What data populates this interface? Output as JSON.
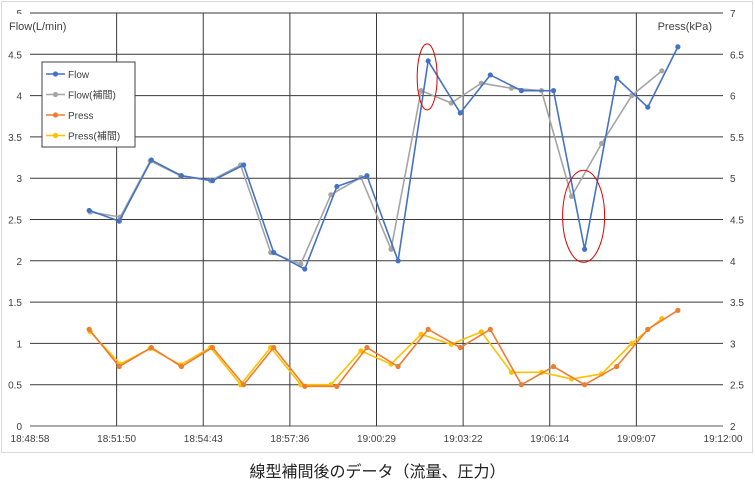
{
  "chart_data": {
    "type": "line",
    "title": "線型補間後のデータ（流量、圧力）",
    "y_left_label": "Flow(L/min)",
    "y_right_label": "Press(kPa)",
    "y_left_range": [
      0,
      5
    ],
    "y_right_range": [
      2,
      7
    ],
    "y_left_ticks": [
      "0",
      "0.5",
      "1",
      "1.5",
      "2",
      "2.5",
      "3",
      "3.5",
      "4",
      "4.5",
      "5"
    ],
    "y_right_ticks": [
      "2",
      "2.5",
      "3",
      "3.5",
      "4",
      "4.5",
      "5",
      "5.5",
      "6",
      "6.5",
      "7"
    ],
    "x_range": [
      "18:48:58",
      "19:12:00"
    ],
    "x_ticks": [
      "18:48:58",
      "18:51:50",
      "18:54:43",
      "18:57:36",
      "19:00:29",
      "19:03:22",
      "19:06:14",
      "19:09:07",
      "19:12:00"
    ],
    "grid": true,
    "legend_position": "top-left",
    "series": [
      {
        "name": "Flow",
        "axis": "left",
        "color": "#4472c4",
        "x": [
          "18:50:56",
          "18:51:56",
          "18:53:00",
          "18:54:00",
          "18:55:02",
          "18:56:04",
          "18:57:04",
          "18:58:06",
          "18:59:10",
          "19:00:10",
          "19:01:12",
          "19:02:12",
          "19:03:16",
          "19:04:16",
          "19:05:18",
          "19:06:22",
          "19:07:24",
          "19:08:28",
          "19:09:30",
          "19:10:30"
        ],
        "values": [
          2.61,
          2.48,
          3.22,
          3.03,
          2.97,
          3.16,
          2.1,
          1.9,
          2.9,
          3.03,
          2.0,
          4.42,
          3.79,
          4.25,
          4.06,
          4.06,
          2.14,
          4.21,
          3.86,
          4.59
        ]
      },
      {
        "name": "Flow(補間)",
        "axis": "left",
        "color": "#a5a5a5",
        "x": [
          "18:50:58",
          "18:51:58",
          "18:52:58",
          "18:53:58",
          "18:54:58",
          "18:55:58",
          "18:56:58",
          "18:57:58",
          "18:58:58",
          "18:59:58",
          "19:00:58",
          "19:01:58",
          "19:02:58",
          "19:03:58",
          "19:04:58",
          "19:05:58",
          "19:06:58",
          "19:07:58",
          "19:08:58",
          "19:09:58"
        ],
        "values": [
          2.59,
          2.53,
          3.21,
          3.03,
          2.97,
          3.16,
          2.1,
          1.96,
          2.8,
          3.01,
          2.14,
          4.06,
          3.91,
          4.15,
          4.09,
          4.06,
          2.78,
          3.42,
          4.0,
          4.3
        ]
      },
      {
        "name": "Press",
        "axis": "right",
        "color": "#ed7d31",
        "x": [
          "18:50:56",
          "18:51:56",
          "18:53:00",
          "18:54:00",
          "18:55:02",
          "18:56:04",
          "18:57:04",
          "18:58:06",
          "18:59:10",
          "19:00:10",
          "19:01:12",
          "19:02:12",
          "19:03:16",
          "19:04:16",
          "19:05:18",
          "19:06:22",
          "19:07:24",
          "19:08:28",
          "19:09:30",
          "19:10:30"
        ],
        "values": [
          3.17,
          2.72,
          2.95,
          2.72,
          2.95,
          2.5,
          2.95,
          2.48,
          2.48,
          2.95,
          2.72,
          3.17,
          2.95,
          3.17,
          2.5,
          2.72,
          2.5,
          2.72,
          3.17,
          3.4
        ]
      },
      {
        "name": "Press(補間)",
        "axis": "right",
        "color": "#ffc000",
        "x": [
          "18:50:58",
          "18:51:58",
          "18:52:58",
          "18:53:58",
          "18:54:58",
          "18:55:58",
          "18:56:58",
          "18:57:58",
          "18:58:58",
          "18:59:58",
          "19:00:58",
          "19:01:58",
          "19:02:58",
          "19:03:58",
          "19:04:58",
          "19:05:58",
          "19:06:58",
          "19:07:58",
          "19:08:58",
          "19:09:58"
        ],
        "values": [
          3.14,
          2.75,
          2.94,
          2.74,
          2.95,
          2.5,
          2.95,
          2.5,
          2.5,
          2.91,
          2.75,
          3.11,
          2.99,
          3.14,
          2.65,
          2.65,
          2.57,
          2.63,
          3.0,
          3.3
        ]
      }
    ],
    "annotations": [
      {
        "shape": "ellipse",
        "color": "#e00000",
        "series": "Flow",
        "point_index": 11
      },
      {
        "shape": "ellipse",
        "color": "#e00000",
        "series": "Flow",
        "point_index": 16
      }
    ]
  }
}
